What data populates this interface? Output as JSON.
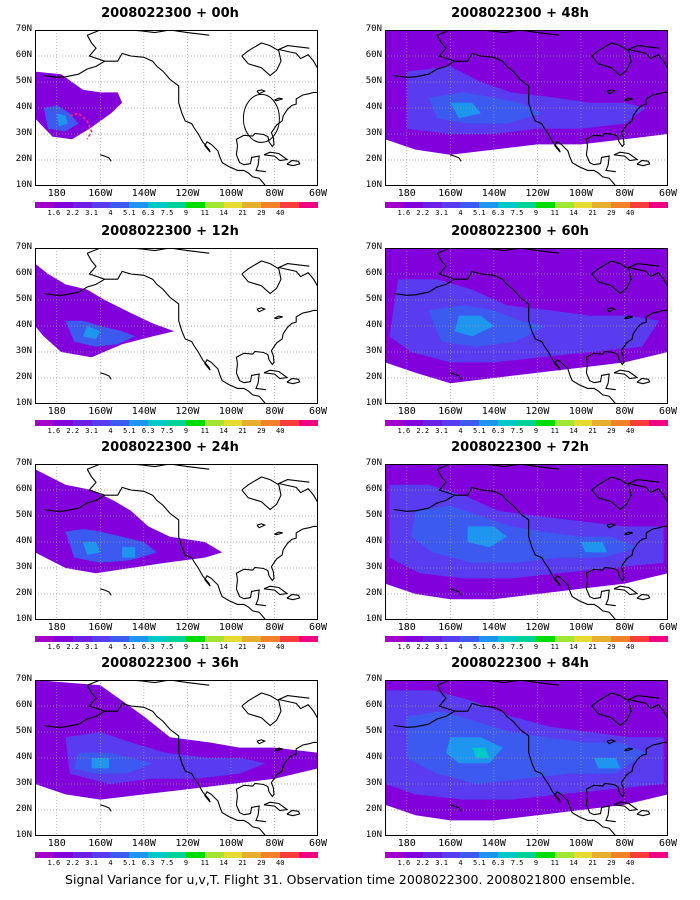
{
  "panels": [
    {
      "title": "2008022300 + 00h",
      "level": 0
    },
    {
      "title": "2008022300 + 48h",
      "level": 4
    },
    {
      "title": "2008022300 + 12h",
      "level": 1
    },
    {
      "title": "2008022300 + 60h",
      "level": 5
    },
    {
      "title": "2008022300 + 24h",
      "level": 2
    },
    {
      "title": "2008022300 + 72h",
      "level": 6
    },
    {
      "title": "2008022300 + 36h",
      "level": 3
    },
    {
      "title": "2008022300 + 84h",
      "level": 7
    }
  ],
  "axes": {
    "lon_labels": [
      "180",
      "160W",
      "140W",
      "120W",
      "100W",
      "80W",
      "60W"
    ],
    "lat_labels": [
      "70N",
      "60N",
      "50N",
      "40N",
      "30N",
      "20N",
      "10N"
    ]
  },
  "colorbar": {
    "labels": [
      "1.6",
      "2.2",
      "3.1",
      "4",
      "5.1",
      "6.3",
      "7.5",
      "9",
      "11",
      "14",
      "21",
      "29",
      "40"
    ],
    "colors": [
      "#a000c8",
      "#8200dc",
      "#6e1ee6",
      "#5a3cf0",
      "#3c5af0",
      "#1e96f0",
      "#00c8c8",
      "#00d296",
      "#00dc00",
      "#a0e632",
      "#e6dc32",
      "#e6af2d",
      "#f08228",
      "#fa3c3c",
      "#f00082"
    ]
  },
  "footer": "Signal Variance for u,v,T. Flight 31. Observation time 2008022300. 2008021800 ensemble."
}
